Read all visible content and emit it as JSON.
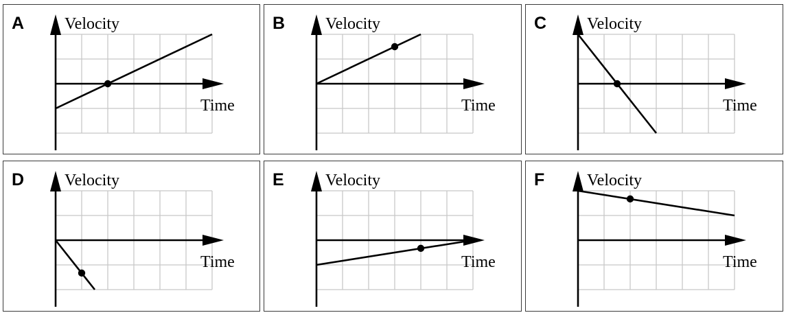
{
  "chart_data": [
    {
      "type": "line",
      "panel": "A",
      "ylabel": "Velocity",
      "xlabel": "Time",
      "grid": true,
      "xlim": [
        0,
        6
      ],
      "ylim": [
        -3,
        2
      ],
      "x": [
        0,
        6
      ],
      "y": [
        -1,
        2
      ],
      "marker": [
        2,
        0
      ]
    },
    {
      "type": "line",
      "panel": "B",
      "ylabel": "Velocity",
      "xlabel": "Time",
      "grid": true,
      "xlim": [
        0,
        6
      ],
      "ylim": [
        -3,
        2
      ],
      "x": [
        0,
        4
      ],
      "y": [
        0,
        2
      ],
      "marker": [
        3,
        1.5
      ]
    },
    {
      "type": "line",
      "panel": "C",
      "ylabel": "Velocity",
      "xlabel": "Time",
      "grid": true,
      "xlim": [
        0,
        6
      ],
      "ylim": [
        -3,
        2
      ],
      "x": [
        0,
        3
      ],
      "y": [
        2,
        -2
      ],
      "marker": [
        1.5,
        0
      ]
    },
    {
      "type": "line",
      "panel": "D",
      "ylabel": "Velocity",
      "xlabel": "Time",
      "grid": true,
      "xlim": [
        0,
        6
      ],
      "ylim": [
        -3,
        2
      ],
      "x": [
        0,
        1.5
      ],
      "y": [
        0,
        -2
      ],
      "marker": [
        1,
        -1.33
      ]
    },
    {
      "type": "line",
      "panel": "E",
      "ylabel": "Velocity",
      "xlabel": "Time",
      "grid": true,
      "xlim": [
        0,
        6
      ],
      "ylim": [
        -3,
        2
      ],
      "x": [
        0,
        6
      ],
      "y": [
        -1,
        0
      ],
      "marker": [
        4,
        -0.33
      ]
    },
    {
      "type": "line",
      "panel": "F",
      "ylabel": "Velocity",
      "xlabel": "Time",
      "grid": true,
      "xlim": [
        0,
        6
      ],
      "ylim": [
        -3,
        2
      ],
      "x": [
        0,
        6
      ],
      "y": [
        2,
        1
      ],
      "marker": [
        2,
        1.67
      ]
    }
  ]
}
